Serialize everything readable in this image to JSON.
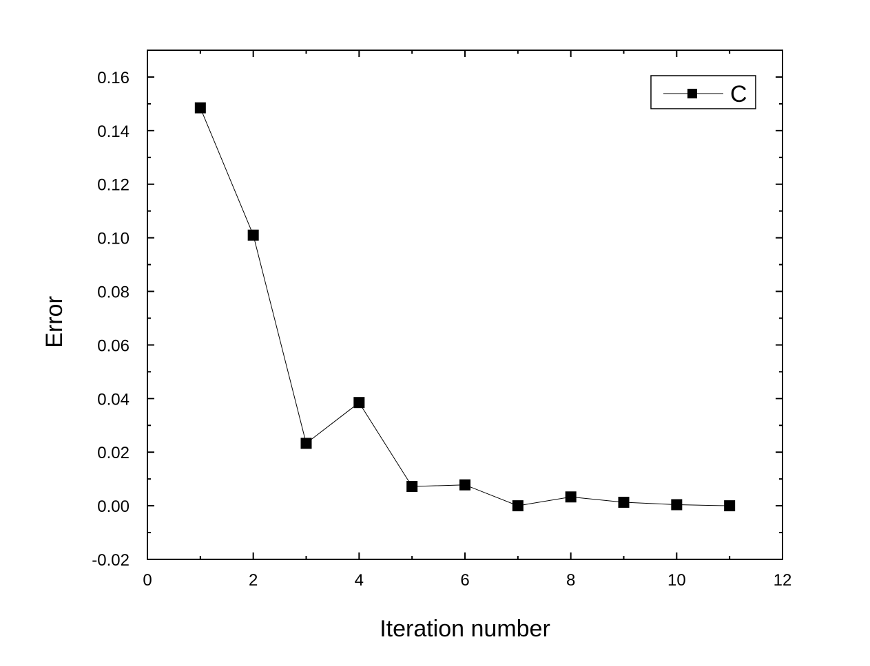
{
  "chart_data": {
    "type": "line",
    "title": "",
    "xlabel": "Iteration number",
    "ylabel": "Error",
    "xlim": [
      0,
      12
    ],
    "ylim": [
      -0.02,
      0.17
    ],
    "x_ticks": [
      "0",
      "2",
      "4",
      "6",
      "8",
      "10",
      "12"
    ],
    "y_ticks": [
      "-0.02",
      "0.00",
      "0.02",
      "0.04",
      "0.06",
      "0.08",
      "0.10",
      "0.12",
      "0.14",
      "0.16"
    ],
    "grid": false,
    "legend_position": "top-right",
    "series": [
      {
        "name": "C",
        "color": "#000000",
        "marker": "square",
        "x": [
          1,
          2,
          3,
          4,
          5,
          6,
          7,
          8,
          9,
          10,
          11
        ],
        "y": [
          0.1485,
          0.101,
          0.0233,
          0.0385,
          0.0072,
          0.0078,
          0.0,
          0.0033,
          0.0013,
          0.0004,
          0.0
        ]
      }
    ]
  }
}
